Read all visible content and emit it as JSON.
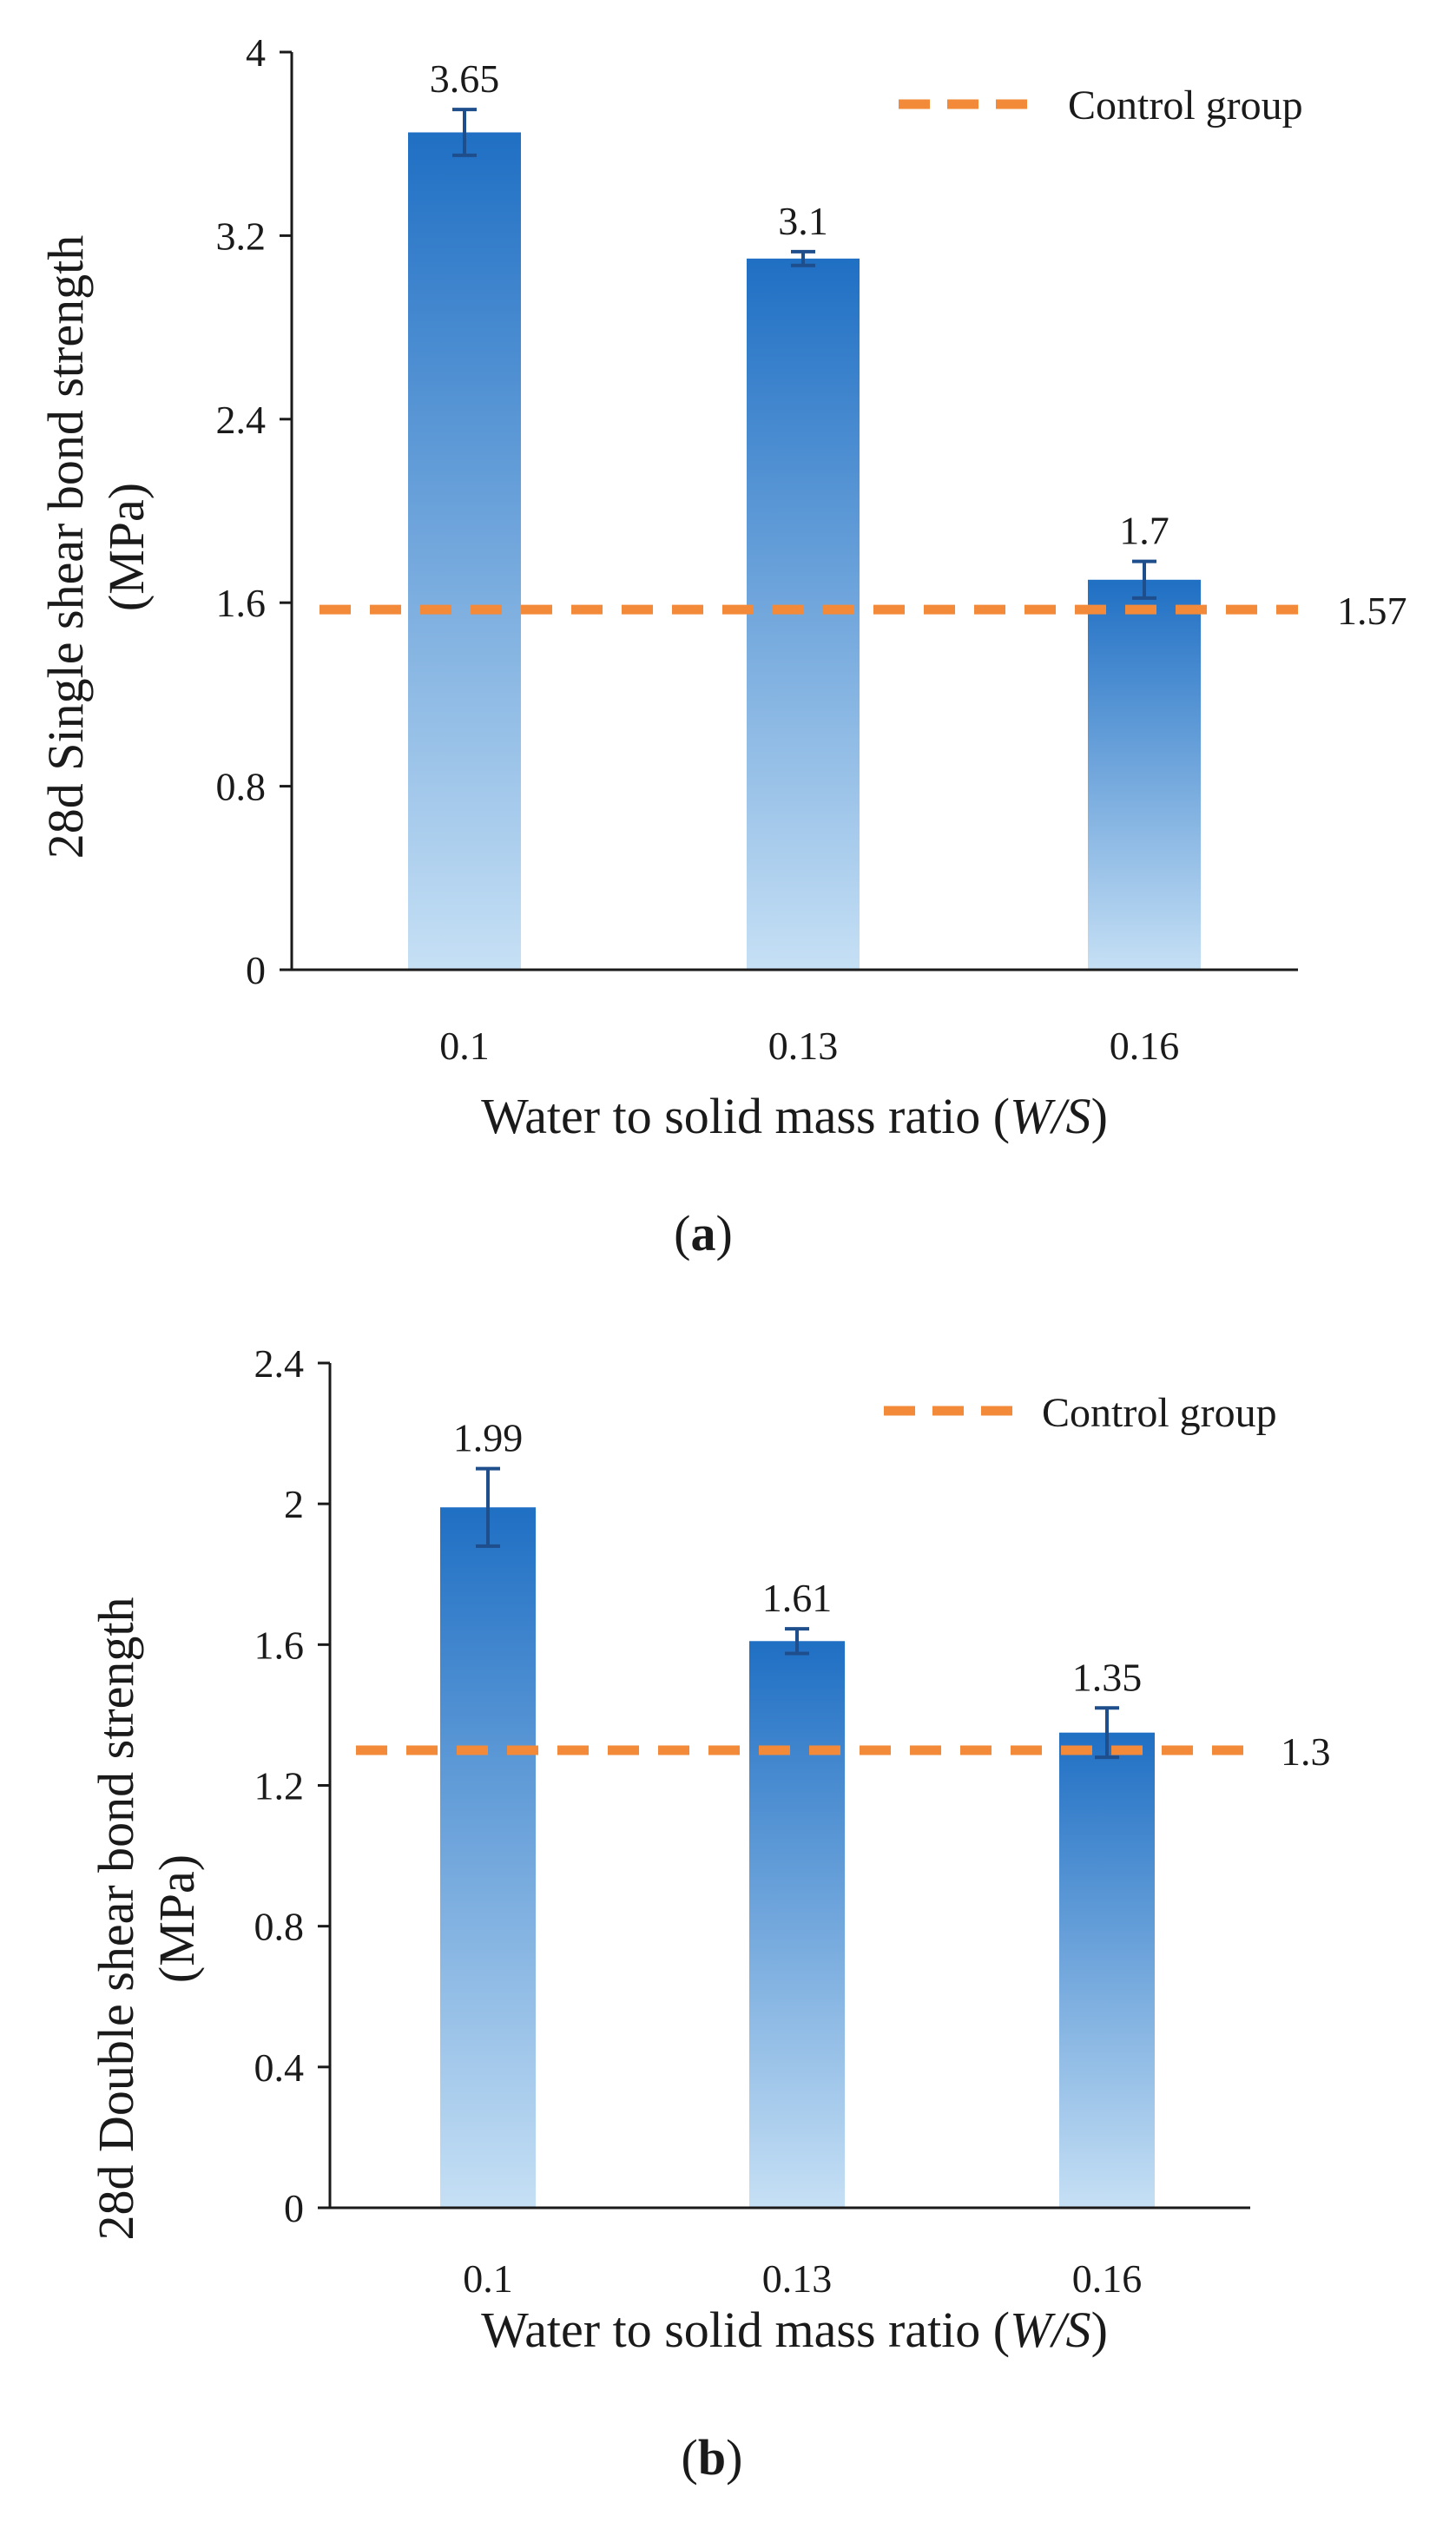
{
  "chart_data": [
    {
      "type": "bar",
      "panel": "a",
      "caption": "(a)",
      "categories": [
        "0.1",
        "0.13",
        "0.16"
      ],
      "values": [
        3.65,
        3.1,
        1.7
      ],
      "value_labels": [
        "3.65",
        "3.1",
        "1.7"
      ],
      "error": [
        0.1,
        0.03,
        0.08
      ],
      "ylim": [
        0,
        4
      ],
      "yticks": [
        "0",
        "0.8",
        "1.6",
        "2.4",
        "3.2",
        "4"
      ],
      "ylabel_line1": "28d Single  shear bond strength",
      "ylabel_line2": "(MPa)",
      "xlabel": "Water to solid  mass  ratio  (",
      "xlabel_italic": "W/S",
      "xlabel_close": ")",
      "control": {
        "name": "Control group",
        "value": 1.57,
        "label": "1.57"
      },
      "colors": {
        "bar_top": "#1f6fc4",
        "bar_bottom": "#c6e0f5",
        "control": "#f28a3a",
        "error": "#1f4e8c"
      }
    },
    {
      "type": "bar",
      "panel": "b",
      "caption": "(b)",
      "categories": [
        "0.1",
        "0.13",
        "0.16"
      ],
      "values": [
        1.99,
        1.61,
        1.35
      ],
      "value_labels": [
        "1.99",
        "1.61",
        "1.35"
      ],
      "error": [
        0.11,
        0.035,
        0.07
      ],
      "ylim": [
        0,
        2.4
      ],
      "yticks": [
        "0",
        "0.4",
        "0.8",
        "1.2",
        "1.6",
        "2",
        "2.4"
      ],
      "ylabel_line1": "28d Double  shear bond strength",
      "ylabel_line2": "(MPa)",
      "xlabel": "Water to solid  mass  ratio  (",
      "xlabel_italic": "W/S",
      "xlabel_close": ")",
      "control": {
        "name": "Control group",
        "value": 1.3,
        "label": "1.3"
      },
      "colors": {
        "bar_top": "#1f6fc4",
        "bar_bottom": "#c6e0f5",
        "control": "#f28a3a",
        "error": "#1f4e8c"
      }
    }
  ]
}
